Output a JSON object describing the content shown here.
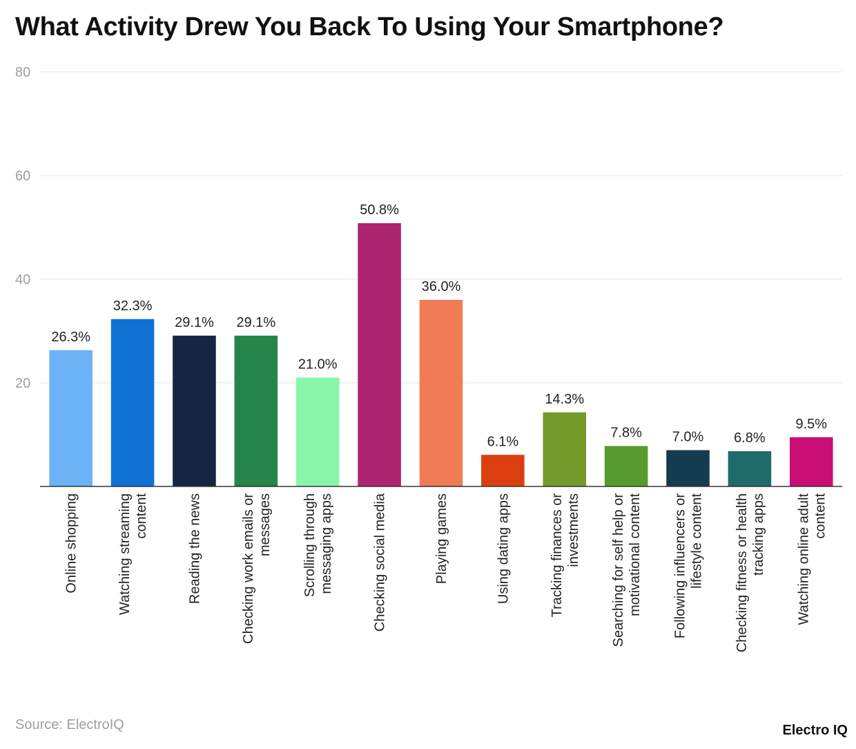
{
  "chart_data": {
    "type": "bar",
    "title": "What Activity Drew You Back To Using Your Smartphone?",
    "xlabel": "",
    "ylabel": "",
    "ylim": [
      0,
      80
    ],
    "yticks": [
      20,
      40,
      60,
      80
    ],
    "grid": true,
    "categories": [
      "Online shopping",
      "Watching streaming content",
      "Reading the news",
      "Checking work emails or messages",
      "Scrolling through messaging apps",
      "Checking social media",
      "Playing games",
      "Using dating apps",
      "Tracking finances or investments",
      "Searching for self help or motivational content",
      "Following influencers or lifestyle content",
      "Checking fitness or health tracking apps",
      "Watching online adult content"
    ],
    "category_lines": [
      [
        "Online shopping"
      ],
      [
        "Watching streaming",
        "content"
      ],
      [
        "Reading the news"
      ],
      [
        "Checking work emails or",
        "messages"
      ],
      [
        "Scrolling through",
        "messaging apps"
      ],
      [
        "Checking social media"
      ],
      [
        "Playing games"
      ],
      [
        "Using dating apps"
      ],
      [
        "Tracking finances or",
        "investments"
      ],
      [
        "Searching for self help or",
        "motivational content"
      ],
      [
        "Following influencers or",
        "lifestyle content"
      ],
      [
        "Checking fitness or health",
        "tracking apps"
      ],
      [
        "Watching online adult",
        "content"
      ]
    ],
    "values": [
      26.3,
      32.3,
      29.1,
      29.1,
      21.0,
      50.8,
      36.0,
      6.1,
      14.3,
      7.8,
      7.0,
      6.8,
      9.5
    ],
    "value_labels": [
      "26.3%",
      "32.3%",
      "29.1%",
      "29.1%",
      "21.0%",
      "50.8%",
      "36.0%",
      "6.1%",
      "14.3%",
      "7.8%",
      "7.0%",
      "6.8%",
      "9.5%"
    ],
    "colors": [
      "#6cb2f7",
      "#1172d6",
      "#172545",
      "#27844a",
      "#89f5ab",
      "#ad2570",
      "#f07c55",
      "#dc3f0f",
      "#759a2a",
      "#579a2d",
      "#153b4e",
      "#1f6b6b",
      "#c90f76"
    ]
  },
  "footer": {
    "source": "Source: ElectroIQ",
    "brand": "Electro IQ"
  }
}
